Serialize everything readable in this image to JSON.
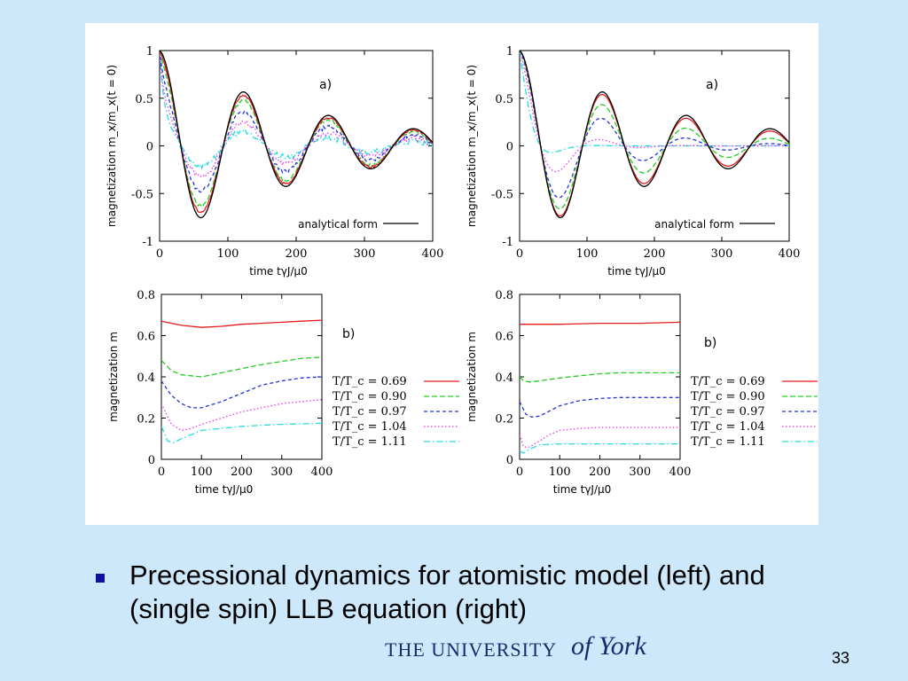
{
  "caption": "Precessional dynamics for atomistic model (left) and (single spin) LLB equation (right)",
  "slide_number": "33",
  "logo": {
    "text": "THE UNIVERSITY",
    "script": "of York"
  },
  "colors": {
    "background": "#cde8fb",
    "bullet": "#1010a0",
    "logo": "#1a2a6c"
  },
  "legend_temps": [
    "T/T_c = 0.69",
    "T/T_c = 0.90",
    "T/T_c = 0.97",
    "T/T_c = 1.04",
    "T/T_c = 1.11"
  ],
  "series_colors": [
    "#e31a1c",
    "#22cc22",
    "#2233dd",
    "#ee33ee",
    "#22dddd"
  ],
  "chart_data": [
    {
      "id": "top-left",
      "type": "line",
      "panel_label": "a)",
      "xlabel": "time tγJ/μ0",
      "ylabel": "magnetization m_x/m_x(t = 0)",
      "xlim": [
        0,
        400
      ],
      "ylim": [
        -1,
        1
      ],
      "xticks": [
        0,
        100,
        200,
        300,
        400
      ],
      "yticks": [
        -1,
        -0.5,
        0,
        0.5,
        1
      ],
      "legend": [
        {
          "label": "analytical form",
          "color": "#000000"
        }
      ],
      "oscillation": {
        "omega": 0.0505,
        "decay": 0.0046
      },
      "amplitudes": [
        0.93,
        0.84,
        0.63,
        0.43,
        0.28
      ],
      "series_names": [
        "analytical form",
        "T/T_c = 0.69",
        "T/T_c = 0.90",
        "T/T_c = 0.97",
        "T/T_c = 1.04",
        "T/T_c = 1.11"
      ]
    },
    {
      "id": "top-right",
      "type": "line",
      "panel_label": "a)",
      "xlabel": "time tγJ/μ0",
      "ylabel": "magnetization m_x/m_x(t = 0)",
      "xlim": [
        0,
        400
      ],
      "ylim": [
        -1,
        1
      ],
      "xticks": [
        0,
        100,
        200,
        300,
        400
      ],
      "yticks": [
        -1,
        -0.5,
        0,
        0.5,
        1
      ],
      "legend": [
        {
          "label": "analytical form",
          "color": "#000000"
        }
      ],
      "oscillation": {
        "omega": 0.0505,
        "decay": 0.0046
      },
      "extra_decay": [
        0.0004,
        0.0022,
        0.0055,
        0.018,
        0.045
      ],
      "series_names": [
        "analytical form",
        "T/T_c = 0.69",
        "T/T_c = 0.90",
        "T/T_c = 0.97",
        "T/T_c = 1.04",
        "T/T_c = 1.11"
      ]
    },
    {
      "id": "bottom-left",
      "type": "line",
      "panel_label": "b)",
      "xlabel": "time tγJ/μ0",
      "ylabel": "magnetization m",
      "xlim": [
        0,
        400
      ],
      "ylim": [
        0,
        0.8
      ],
      "xticks": [
        0,
        100,
        200,
        300,
        400
      ],
      "yticks": [
        0,
        0.2,
        0.4,
        0.6,
        0.8
      ],
      "series": [
        {
          "name": "T/T_c = 0.69",
          "x": [
            0,
            50,
            100,
            150,
            200,
            250,
            300,
            350,
            400
          ],
          "values": [
            0.67,
            0.65,
            0.64,
            0.645,
            0.655,
            0.66,
            0.665,
            0.67,
            0.675
          ]
        },
        {
          "name": "T/T_c = 0.90",
          "x": [
            0,
            25,
            50,
            100,
            150,
            200,
            250,
            300,
            350,
            400
          ],
          "values": [
            0.48,
            0.43,
            0.41,
            0.4,
            0.42,
            0.44,
            0.46,
            0.475,
            0.49,
            0.495
          ]
        },
        {
          "name": "T/T_c = 0.97",
          "x": [
            0,
            25,
            50,
            75,
            100,
            150,
            200,
            250,
            300,
            350,
            400
          ],
          "values": [
            0.38,
            0.31,
            0.27,
            0.25,
            0.25,
            0.28,
            0.32,
            0.36,
            0.38,
            0.395,
            0.4
          ]
        },
        {
          "name": "T/T_c = 1.04",
          "x": [
            0,
            25,
            50,
            75,
            100,
            150,
            200,
            250,
            300,
            350,
            400
          ],
          "values": [
            0.27,
            0.17,
            0.14,
            0.15,
            0.17,
            0.2,
            0.23,
            0.25,
            0.27,
            0.28,
            0.29
          ]
        },
        {
          "name": "T/T_c = 1.11",
          "x": [
            0,
            15,
            30,
            50,
            75,
            100,
            150,
            200,
            250,
            300,
            350,
            400
          ],
          "values": [
            0.16,
            0.09,
            0.08,
            0.1,
            0.12,
            0.14,
            0.15,
            0.16,
            0.165,
            0.17,
            0.172,
            0.175
          ]
        }
      ]
    },
    {
      "id": "bottom-right",
      "type": "line",
      "panel_label": "b)",
      "xlabel": "time tγJ/μ0",
      "ylabel": "magnetization m",
      "xlim": [
        0,
        400
      ],
      "ylim": [
        0,
        0.8
      ],
      "xticks": [
        0,
        100,
        200,
        300,
        400
      ],
      "yticks": [
        0,
        0.2,
        0.4,
        0.6,
        0.8
      ],
      "series": [
        {
          "name": "T/T_c = 0.69",
          "x": [
            0,
            100,
            200,
            300,
            400
          ],
          "values": [
            0.655,
            0.655,
            0.66,
            0.66,
            0.665
          ]
        },
        {
          "name": "T/T_c = 0.90",
          "x": [
            0,
            10,
            25,
            50,
            100,
            150,
            200,
            250,
            300,
            350,
            400
          ],
          "values": [
            0.4,
            0.38,
            0.375,
            0.38,
            0.395,
            0.405,
            0.415,
            0.42,
            0.42,
            0.42,
            0.42
          ]
        },
        {
          "name": "T/T_c = 0.97",
          "x": [
            0,
            15,
            30,
            50,
            75,
            100,
            150,
            200,
            250,
            300,
            350,
            400
          ],
          "values": [
            0.28,
            0.22,
            0.205,
            0.21,
            0.235,
            0.26,
            0.285,
            0.295,
            0.3,
            0.3,
            0.3,
            0.3
          ]
        },
        {
          "name": "T/T_c = 1.04",
          "x": [
            0,
            10,
            25,
            50,
            75,
            100,
            150,
            200,
            300,
            400
          ],
          "values": [
            0.12,
            0.06,
            0.06,
            0.09,
            0.12,
            0.14,
            0.15,
            0.155,
            0.155,
            0.155
          ]
        },
        {
          "name": "T/T_c = 1.11",
          "x": [
            0,
            10,
            25,
            50,
            100,
            200,
            300,
            400
          ],
          "values": [
            0.04,
            0.03,
            0.05,
            0.07,
            0.075,
            0.075,
            0.075,
            0.075
          ]
        }
      ]
    }
  ]
}
